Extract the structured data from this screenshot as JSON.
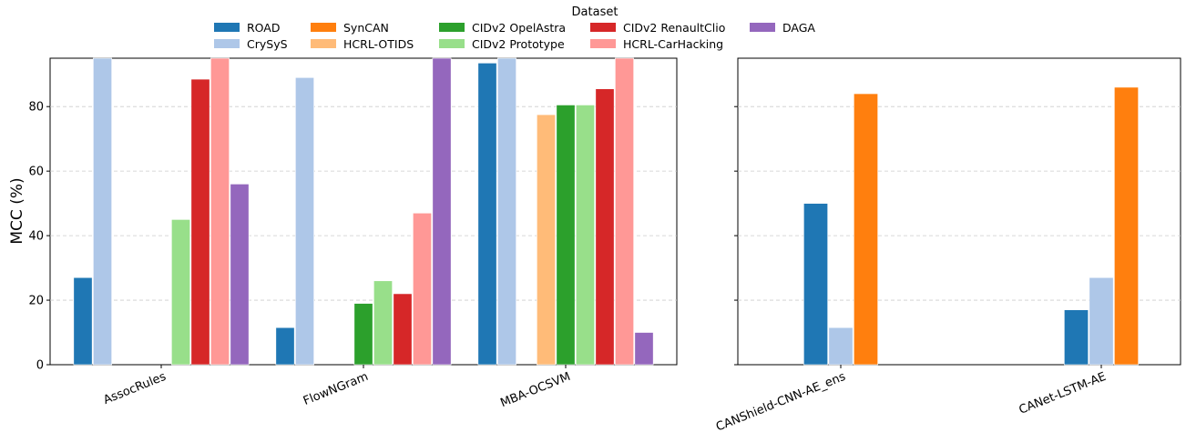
{
  "chart_data": {
    "type": "bar",
    "legend_title": "Dataset",
    "legend_position": "top-center",
    "ylabel": "MCC (%)",
    "ylim": [
      0,
      95
    ],
    "yticks": [
      0,
      20,
      40,
      60,
      80
    ],
    "grid": "y-dashed",
    "series": [
      {
        "name": "ROAD",
        "color": "#1f77b4"
      },
      {
        "name": "CrySyS",
        "color": "#aec7e8"
      },
      {
        "name": "SynCAN",
        "color": "#ff7f0e"
      },
      {
        "name": "HCRL-OTIDS",
        "color": "#ffbb78"
      },
      {
        "name": "CIDv2 OpelAstra",
        "color": "#2ca02c"
      },
      {
        "name": "CIDv2 Prototype",
        "color": "#98df8a"
      },
      {
        "name": "CIDv2 RenaultClio",
        "color": "#d62728"
      },
      {
        "name": "HCRL-CarHacking",
        "color": "#ff9896"
      },
      {
        "name": "DAGA",
        "color": "#9467bd"
      }
    ],
    "panels": [
      {
        "categories": [
          "AssocRules",
          "FlowNGram",
          "MBA-OCSVM"
        ],
        "values": [
          [
            27,
            100,
            null,
            null,
            null,
            45,
            88.5,
            100,
            56
          ],
          [
            11.5,
            89,
            null,
            null,
            19,
            26,
            22,
            47,
            100
          ],
          [
            93.5,
            100,
            null,
            77.5,
            80.5,
            80.5,
            85.5,
            100,
            10
          ]
        ]
      },
      {
        "categories": [
          "CANShield-CNN-AE_ens",
          "CANet-LSTM-AE"
        ],
        "values": [
          [
            50,
            11.5,
            84
          ],
          [
            17,
            27,
            86
          ]
        ],
        "series_index": [
          0,
          1,
          2
        ]
      }
    ]
  }
}
